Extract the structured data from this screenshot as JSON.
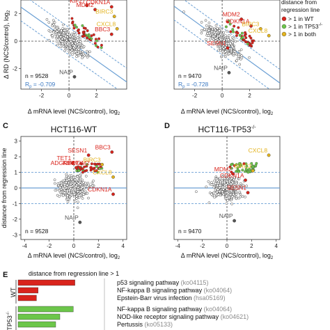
{
  "colors": {
    "red": "#d9241c",
    "green": "#6cc64a",
    "yellow": "#e3b31e",
    "gray": "#555555",
    "blue": "#6a9fd4",
    "point_fill": "#ffffff",
    "point_stroke": "#333333"
  },
  "legend": {
    "title_line1": "distance from",
    "title_line2": "regression line",
    "items": [
      {
        "label": "> 1 in WT",
        "color": "#d9241c"
      },
      {
        "label": "> 1 in TP53",
        "sup": "-/-",
        "color": "#6cc64a"
      },
      {
        "label": "> 1 in both",
        "color": "#e3b31e"
      }
    ]
  },
  "panels": {
    "A": {
      "n_label": "n = 9528",
      "r_label": "Rp = -0.709",
      "r_main": "R",
      "r_sub": "p",
      "r_value": " = -0.709",
      "ylabel": "Δ RD (NCS/control), log",
      "ylabel_sub": "2",
      "xlabel": "Δ mRNA level (NCS/control), log",
      "xlabel_sub": "2"
    },
    "B": {
      "n_label": "n = 9470",
      "r_main": "R",
      "r_sub": "p",
      "r_value": " = -0.728",
      "xlabel": "Δ mRNA level (NCS/control), log",
      "xlabel_sub": "2"
    },
    "C": {
      "letter": "C",
      "title": "HCT116-WT",
      "n_label": "n = 9528",
      "ylabel": "distance from regression line",
      "xlabel": "Δ mRNA level (NCS/control), log",
      "xlabel_sub": "2"
    },
    "D": {
      "letter": "D",
      "title": "HCT116-TP53",
      "title_sup": "-/-",
      "n_label": "n = 9470",
      "xlabel": "Δ mRNA level (NCS/control), log",
      "xlabel_sub": "2"
    },
    "E": {
      "letter": "E",
      "header": "distance from regression line > 1",
      "group1": "WT",
      "group2": "TP53",
      "group2_sup": "-/-"
    }
  },
  "chart_data": [
    {
      "type": "scatter",
      "panel": "A",
      "xlabel": "Δ mRNA level (NCS/control), log2",
      "ylabel": "Δ RD (NCS/control), log2",
      "xlim": [
        -3.5,
        4.2
      ],
      "ylim": [
        -3.5,
        3.0
      ],
      "x_ticks": [
        -2,
        0,
        2
      ],
      "y_ticks": [
        -2,
        0,
        2
      ],
      "n": 9528,
      "pearson_r": -0.709,
      "labeled_genes": [
        {
          "name": "KIF27",
          "x": 1.3,
          "y": 2.6,
          "color": "red"
        },
        {
          "name": "MDM2",
          "x": 1.9,
          "y": 2.3,
          "color": "red"
        },
        {
          "name": "CDKN1A",
          "x": 3.1,
          "y": 2.5,
          "color": "red"
        },
        {
          "name": "BIRC3",
          "x": 3.3,
          "y": 1.8,
          "color": "yellow"
        },
        {
          "name": "CXCL8",
          "x": 3.5,
          "y": 0.9,
          "color": "yellow"
        },
        {
          "name": "BBC3",
          "x": 3.1,
          "y": 0.5,
          "color": "red"
        },
        {
          "name": "NAIP",
          "x": 0.4,
          "y": -2.6,
          "color": "gray"
        }
      ]
    },
    {
      "type": "scatter",
      "panel": "B",
      "xlabel": "Δ mRNA level (NCS/control), log2",
      "xlim": [
        -3.5,
        4.2
      ],
      "ylim": [
        -3.5,
        3.0
      ],
      "x_ticks": [
        -2,
        0,
        2
      ],
      "n": 9470,
      "pearson_r": -0.728,
      "labeled_genes": [
        {
          "name": "MDM2",
          "x": 1.4,
          "y": 1.6,
          "color": "red"
        },
        {
          "name": "CDKN1A",
          "x": 2.1,
          "y": 1.1,
          "color": "red"
        },
        {
          "name": "BIRC3",
          "x": 2.8,
          "y": 0.9,
          "color": "yellow"
        },
        {
          "name": "CXCL8",
          "x": 3.4,
          "y": 0.4,
          "color": "yellow"
        },
        {
          "name": "SESN1",
          "x": 0.4,
          "y": -0.5,
          "color": "red"
        },
        {
          "name": "NAIP",
          "x": 0.5,
          "y": -2.3,
          "color": "gray"
        }
      ]
    },
    {
      "type": "scatter",
      "panel": "C",
      "title": "HCT116-WT",
      "xlabel": "Δ mRNA level (NCS/control), log2",
      "ylabel": "distance from regression line",
      "xlim": [
        -4.3,
        4.3
      ],
      "ylim": [
        -3.3,
        3.3
      ],
      "x_ticks": [
        -4,
        -2,
        0,
        2,
        4
      ],
      "y_ticks": [
        -3,
        -2,
        -1,
        0,
        1,
        2,
        3
      ],
      "threshold_lines": [
        -1,
        1
      ],
      "n": 9528,
      "labeled_genes": [
        {
          "name": "TET1",
          "x": -0.1,
          "y": 1.6,
          "color": "red"
        },
        {
          "name": "ADGRB2",
          "x": 0.2,
          "y": 1.3,
          "color": "red"
        },
        {
          "name": "KIF27",
          "x": 0.5,
          "y": 1.3,
          "color": "red"
        },
        {
          "name": "SESN1",
          "x": 1.2,
          "y": 2.1,
          "color": "red"
        },
        {
          "name": "MDM2",
          "x": 1.4,
          "y": 1.3,
          "color": "red"
        },
        {
          "name": "BIRC3",
          "x": 2.3,
          "y": 1.5,
          "color": "yellow"
        },
        {
          "name": "BBC3",
          "x": 3.1,
          "y": 2.3,
          "color": "red"
        },
        {
          "name": "CXCL8",
          "x": 3.2,
          "y": 0.7,
          "color": "yellow"
        },
        {
          "name": "CDKN1A",
          "x": 3.2,
          "y": -0.4,
          "color": "red"
        },
        {
          "name": "NAIP",
          "x": 0.5,
          "y": -2.2,
          "color": "gray"
        }
      ]
    },
    {
      "type": "scatter",
      "panel": "D",
      "title": "HCT116-TP53-/-",
      "xlabel": "Δ mRNA level (NCS/control), log2",
      "xlim": [
        -4.3,
        4.3
      ],
      "ylim": [
        -3.3,
        3.3
      ],
      "x_ticks": [
        -4,
        -2,
        0,
        2,
        4
      ],
      "threshold_lines": [
        -1,
        1
      ],
      "n": 9470,
      "labeled_genes": [
        {
          "name": "CXCL8",
          "x": 3.4,
          "y": 2.1,
          "color": "yellow"
        },
        {
          "name": "MDM2",
          "x": 0.5,
          "y": 0.9,
          "color": "red"
        },
        {
          "name": "BIRC3",
          "x": 2.1,
          "y": 1.1,
          "color": "yellow"
        },
        {
          "name": "CDKN1A",
          "x": 1.5,
          "y": 0.5,
          "color": "red"
        },
        {
          "name": "SESN1",
          "x": 1.7,
          "y": -0.3,
          "color": "red"
        },
        {
          "name": "NAIP",
          "x": 0.6,
          "y": -2.1,
          "color": "gray"
        }
      ]
    },
    {
      "type": "bar",
      "panel": "E",
      "orientation": "horizontal",
      "title": "distance from regression line > 1",
      "groups": [
        {
          "name": "WT",
          "color": "red",
          "bars": [
            {
              "term": "p53 signaling pathway",
              "id": "(ko04115)",
              "value": 6.8
            },
            {
              "term": "NF-kappa B signaling pathway",
              "id": "(ko04064)",
              "value": 2.4
            },
            {
              "term": "Epstein-Barr virus infection",
              "id": "(hsa05169)",
              "value": 2.2
            }
          ]
        },
        {
          "name": "TP53-/-",
          "color": "green",
          "bars": [
            {
              "term": "NF-kappa B signaling pathway",
              "id": "(ko04064)",
              "value": 6.6
            },
            {
              "term": "NOD-like receptor signaling pathway",
              "id": "(ko04621)",
              "value": 5.0
            },
            {
              "term": "Pertussis",
              "id": "(ko05133)",
              "value": 4.5
            }
          ]
        }
      ]
    }
  ]
}
